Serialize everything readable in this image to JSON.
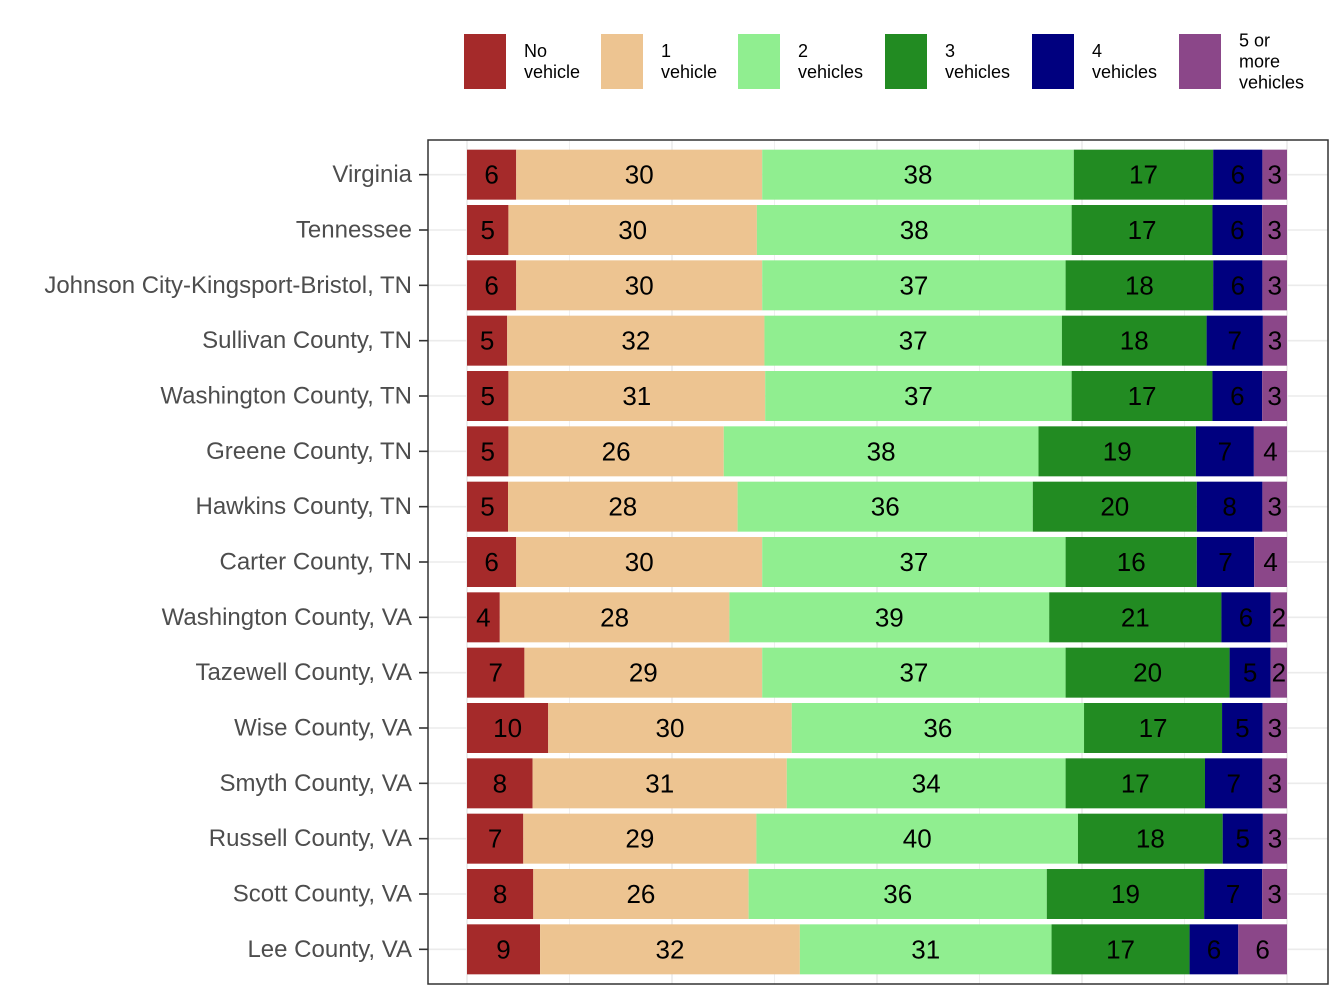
{
  "chart_data": {
    "type": "bar",
    "orientation": "horizontal",
    "stacked": true,
    "normalized": true,
    "title": "",
    "xlabel": "",
    "ylabel": "",
    "xlim": [
      0,
      100
    ],
    "grid": true,
    "legend_position": "top-right",
    "categories": [
      "Virginia",
      "Tennessee",
      "Johnson City-Kingsport-Bristol, TN",
      "Sullivan County, TN",
      "Washington County, TN",
      "Greene County, TN",
      "Hawkins County, TN",
      "Carter County, TN",
      "Washington County, VA",
      "Tazewell County, VA",
      "Wise County, VA",
      "Smyth County, VA",
      "Russell County, VA",
      "Scott County, VA",
      "Lee County, VA"
    ],
    "series": [
      {
        "name": "No vehicle",
        "legend_lines": [
          "No",
          "vehicle"
        ],
        "color": "#A52A2A",
        "values": [
          6,
          5,
          6,
          5,
          5,
          5,
          5,
          6,
          4,
          7,
          10,
          8,
          7,
          8,
          9
        ]
      },
      {
        "name": "1 vehicle",
        "legend_lines": [
          "1",
          "vehicle"
        ],
        "color": "#EDC491",
        "values": [
          30,
          30,
          30,
          32,
          31,
          26,
          28,
          30,
          28,
          29,
          30,
          31,
          29,
          26,
          32
        ]
      },
      {
        "name": "2 vehicles",
        "legend_lines": [
          "2",
          "vehicles"
        ],
        "color": "#90EE90",
        "values": [
          38,
          38,
          37,
          37,
          37,
          38,
          36,
          37,
          39,
          37,
          36,
          34,
          40,
          36,
          31
        ]
      },
      {
        "name": "3 vehicles",
        "legend_lines": [
          "3",
          "vehicles"
        ],
        "color": "#228B22",
        "values": [
          17,
          17,
          18,
          18,
          17,
          19,
          20,
          16,
          21,
          20,
          17,
          17,
          18,
          19,
          17
        ]
      },
      {
        "name": "4 vehicles",
        "legend_lines": [
          "4",
          "vehicles"
        ],
        "color": "#00007F",
        "values": [
          6,
          6,
          6,
          7,
          6,
          7,
          8,
          7,
          6,
          5,
          5,
          7,
          5,
          7,
          6
        ]
      },
      {
        "name": "5 or more vehicles",
        "legend_lines": [
          "5 or",
          "more",
          "vehicles"
        ],
        "color": "#8B4789",
        "values": [
          3,
          3,
          3,
          3,
          3,
          4,
          3,
          4,
          2,
          2,
          3,
          3,
          3,
          3,
          6
        ]
      }
    ]
  }
}
